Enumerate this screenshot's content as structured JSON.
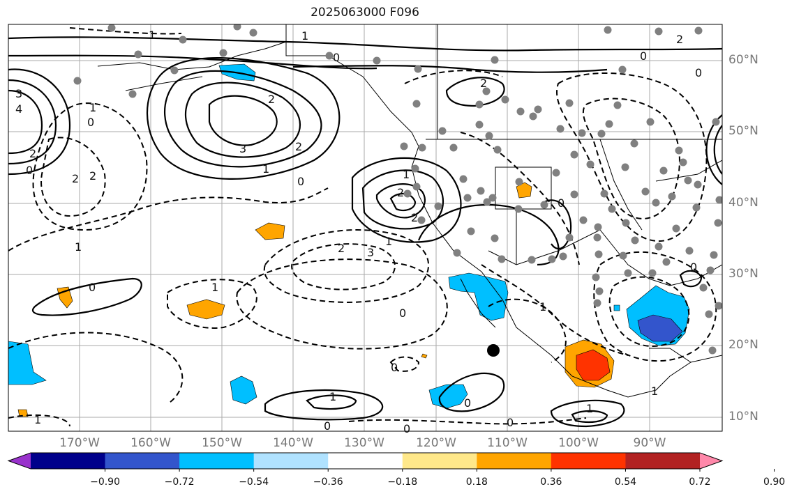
{
  "title": "2025063000 F096",
  "lat_labels": [
    "60°N",
    "50°N",
    "40°N",
    "30°N",
    "20°N",
    "10°N"
  ],
  "lon_labels": [
    "170°W",
    "160°W",
    "150°W",
    "140°W",
    "130°W",
    "120°W",
    "110°W",
    "100°W",
    "90°W"
  ],
  "contour_labels": [
    "1",
    "1",
    "0",
    "1",
    "2",
    "0",
    "0",
    "2",
    "3",
    "2",
    "1",
    "0",
    "2",
    "2",
    "0",
    "2",
    "2",
    "1",
    "2",
    "2",
    "1",
    "0",
    "1",
    "0",
    "0",
    "1",
    "0",
    "1",
    "0",
    "0",
    "0",
    "1",
    "0",
    "0",
    "0",
    "1",
    "1",
    "2",
    "4",
    "3",
    "3",
    "1"
  ],
  "colorbar": {
    "tick_labels": [
      "−0.90",
      "−0.72",
      "−0.54",
      "−0.36",
      "−0.18",
      "0.18",
      "0.36",
      "0.54",
      "0.72",
      "0.90"
    ],
    "colors": [
      "#9932cc",
      "#00008b",
      "#3355cc",
      "#00bfff",
      "#b0e2ff",
      "#ffffff",
      "#ffe88a",
      "#ffa500",
      "#ff3300",
      "#b22222",
      "#ff88aa"
    ]
  },
  "station_marker_color": "#808080"
}
